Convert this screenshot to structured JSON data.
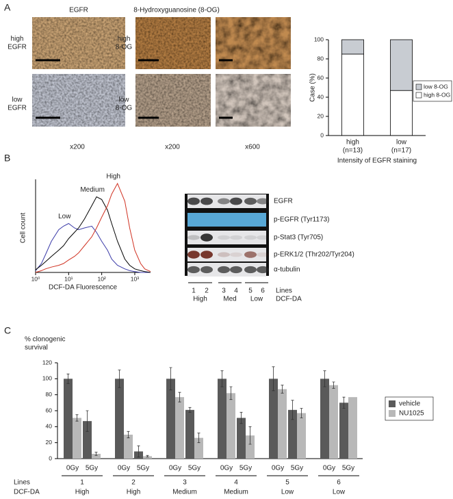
{
  "figure": {
    "panel_labels": [
      "A",
      "B",
      "C"
    ],
    "panel_a": {
      "egfr_title": "EGFR",
      "og_title": "8-Hydroxyguanosine (8-OG)",
      "egfr_rows": [
        [
          "high",
          "EGFR"
        ],
        [
          "low",
          "EGFR"
        ]
      ],
      "og_rows": [
        [
          "high",
          "8-OG"
        ],
        [
          "low",
          "8-OG"
        ]
      ],
      "magnifications": [
        "x200",
        "x200",
        "x600"
      ]
    },
    "panel_b_blot": {
      "proteins": [
        "EGFR",
        "p-EGFR (Tyr1173)",
        "p-Stat3 (Tyr705)",
        "p-ERK1/2 (Thr202/Tyr204)",
        "α-tubulin"
      ],
      "lanes": [
        "1",
        "2",
        "3",
        "4",
        "5",
        "6"
      ],
      "groups": [
        "High",
        "Med",
        "Low"
      ],
      "row_labels": [
        "Lines",
        "DCF-DA"
      ]
    }
  },
  "chart_data": [
    {
      "type": "stacked_bar",
      "y_label": "Case (%)",
      "x_label": "Intensity of EGFR staining",
      "categories": [
        "high",
        "low"
      ],
      "category_counts": [
        "(n=13)",
        "(n=17)"
      ],
      "series": [
        {
          "name": "high 8-OG",
          "color": "#ffffff",
          "values": [
            85,
            47
          ]
        },
        {
          "name": "low 8-OG",
          "color": "#c8ccd2",
          "values": [
            15,
            53
          ]
        }
      ],
      "ylim": [
        0,
        100
      ],
      "yticks": [
        0,
        20,
        40,
        60,
        80,
        100
      ],
      "legend": "right"
    },
    {
      "type": "line",
      "y_label": "Cell count",
      "x_label": "DCF-DA Fluorescence",
      "log_x": true,
      "x": [
        1,
        1.5,
        2,
        3,
        5,
        7,
        10,
        15,
        20,
        30,
        50,
        70,
        100,
        150,
        200,
        300,
        500,
        700,
        1000,
        1500,
        2000,
        3000
      ],
      "xlim": [
        1,
        3000
      ],
      "xticks": [
        {
          "value": 1,
          "label": "10⁰"
        },
        {
          "value": 10,
          "label": "10¹"
        },
        {
          "value": 100,
          "label": "10²"
        },
        {
          "value": 1000,
          "label": "10³"
        }
      ],
      "ylim": [
        0,
        100
      ],
      "series": [
        {
          "name": "Low",
          "color": "#3a3aa8",
          "values": [
            2,
            10,
            20,
            35,
            48,
            52,
            55,
            50,
            48,
            50,
            52,
            45,
            35,
            25,
            15,
            8,
            4,
            2,
            1,
            0,
            0,
            0
          ]
        },
        {
          "name": "Medium",
          "color": "#000000",
          "values": [
            3,
            8,
            12,
            18,
            25,
            30,
            38,
            45,
            50,
            60,
            75,
            85,
            82,
            70,
            55,
            35,
            15,
            8,
            4,
            2,
            1,
            0
          ]
        },
        {
          "name": "High",
          "color": "#d03020",
          "values": [
            0,
            2,
            4,
            6,
            8,
            10,
            14,
            18,
            22,
            30,
            40,
            50,
            62,
            75,
            88,
            100,
            80,
            50,
            25,
            10,
            4,
            1
          ]
        }
      ]
    },
    {
      "type": "grouped_bar",
      "y_label": [
        "% clonogenic",
        "survival"
      ],
      "categories": [
        "0Gy",
        "5Gy",
        "0Gy",
        "5Gy",
        "0Gy",
        "5Gy",
        "0Gy",
        "5Gy",
        "0Gy",
        "5Gy",
        "0Gy",
        "5Gy"
      ],
      "row_labels": [
        "Lines",
        "DCF-DA"
      ],
      "lines": [
        "1",
        "2",
        "3",
        "4",
        "5",
        "6"
      ],
      "dcf_da": [
        "High",
        "High",
        "Medium",
        "Medium",
        "Low",
        "Low"
      ],
      "series": [
        {
          "name": "vehicle",
          "color": "#5a5a5a",
          "values": [
            100,
            47,
            100,
            9,
            100,
            61,
            100,
            51,
            100,
            61,
            100,
            70
          ],
          "errors": [
            6,
            13,
            11,
            7,
            14,
            3,
            10,
            7,
            15,
            12,
            10,
            7
          ]
        },
        {
          "name": "NU1025",
          "color": "#b8b8b8",
          "values": [
            51,
            6,
            30,
            3,
            77,
            26,
            82,
            29,
            87,
            57,
            92,
            77
          ],
          "errors": [
            4,
            2,
            4,
            1,
            6,
            6,
            8,
            11,
            5,
            6,
            4,
            null
          ]
        }
      ],
      "ylim": [
        0,
        120
      ],
      "yticks": [
        0,
        20,
        40,
        60,
        80,
        100,
        120
      ],
      "legend": "right"
    }
  ]
}
